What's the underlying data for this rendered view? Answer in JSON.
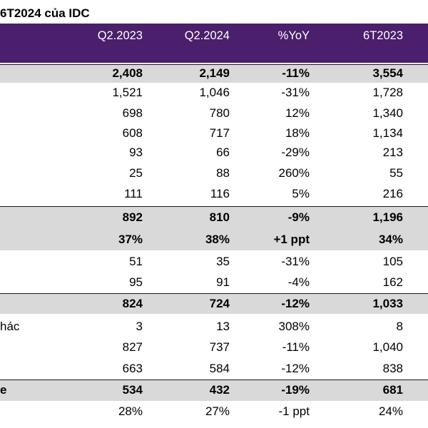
{
  "title": "6T2024 của IDC",
  "header": {
    "columns": [
      "Q2.2023",
      "Q2.2024",
      "%YoY",
      "6T2023"
    ]
  },
  "rows": [
    {
      "label": "",
      "values": [
        "2,408",
        "2,149",
        "-11%",
        "3,554"
      ],
      "bold": true,
      "shaded": true
    },
    {
      "label": "",
      "values": [
        "1,521",
        "1,046",
        "-31%",
        "1,728"
      ],
      "bold": false,
      "shaded": false
    },
    {
      "label": "",
      "values": [
        "698",
        "780",
        "12%",
        "1,340"
      ],
      "bold": false,
      "shaded": false
    },
    {
      "label": "",
      "values": [
        "608",
        "717",
        "18%",
        "1,134"
      ],
      "bold": false,
      "shaded": false
    },
    {
      "label": "",
      "values": [
        "93",
        "66",
        "-29%",
        "213"
      ],
      "bold": false,
      "shaded": false
    },
    {
      "label": "",
      "values": [
        "25",
        "88",
        "260%",
        "55"
      ],
      "bold": false,
      "shaded": false
    },
    {
      "label": "",
      "values": [
        "111",
        "116",
        "5%",
        "216"
      ],
      "bold": false,
      "shaded": false
    },
    {
      "label": "",
      "values": [
        "892",
        "810",
        "-9%",
        "1,196"
      ],
      "bold": true,
      "shaded": true
    },
    {
      "label": "",
      "values": [
        "37%",
        "38%",
        "+1 ppt",
        "34%"
      ],
      "bold": true,
      "shaded": true
    },
    {
      "label": "",
      "values": [
        "51",
        "35",
        "-31%",
        "105"
      ],
      "bold": false,
      "shaded": false
    },
    {
      "label": "",
      "values": [
        "95",
        "91",
        "-4%",
        "162"
      ],
      "bold": false,
      "shaded": false
    },
    {
      "label": "",
      "values": [
        "824",
        "724",
        "-12%",
        "1,033"
      ],
      "bold": true,
      "shaded": true
    },
    {
      "label": "hác",
      "values": [
        "3",
        "13",
        "308%",
        "8"
      ],
      "bold": false,
      "shaded": false
    },
    {
      "label": "",
      "values": [
        "827",
        "737",
        "-11%",
        "1,040"
      ],
      "bold": false,
      "shaded": false
    },
    {
      "label": "",
      "values": [
        "663",
        "584",
        "-12%",
        "838"
      ],
      "bold": false,
      "shaded": false
    },
    {
      "label": "e",
      "values": [
        "534",
        "432",
        "-19%",
        "681"
      ],
      "bold": true,
      "shaded": true
    },
    {
      "label": "",
      "values": [
        "28%",
        "27%",
        "-1 ppt",
        "24%"
      ],
      "bold": false,
      "shaded": false
    }
  ]
}
